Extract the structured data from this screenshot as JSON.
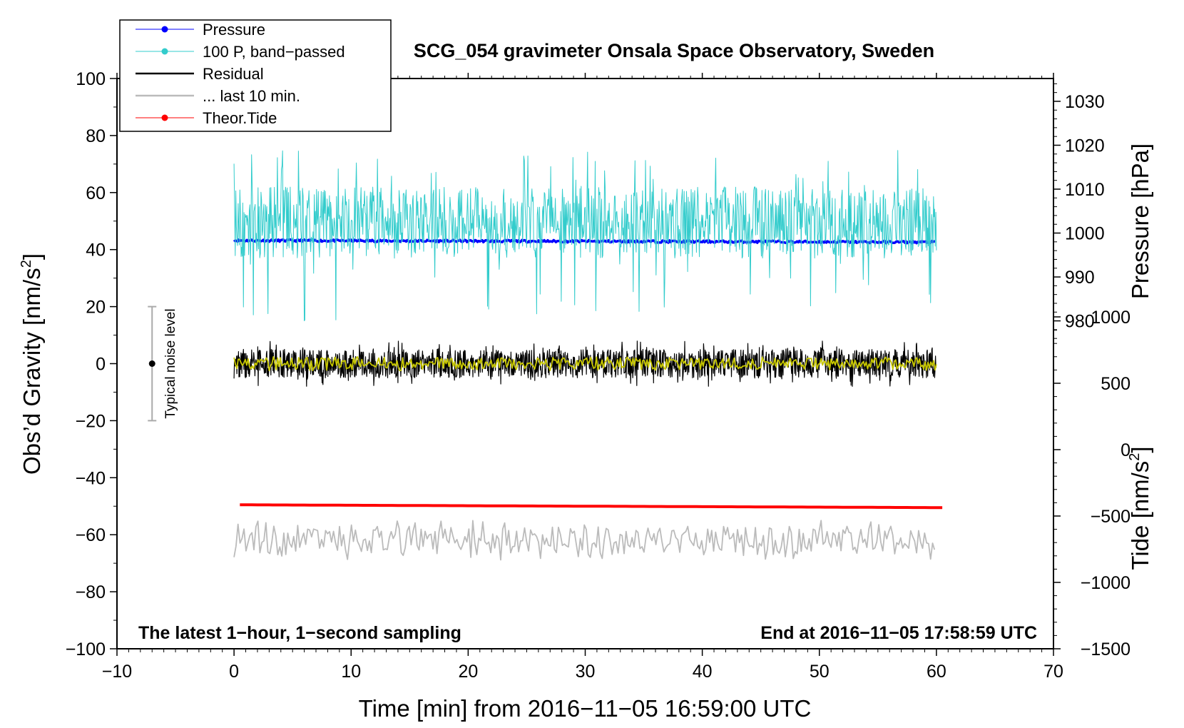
{
  "chart_data": {
    "type": "line",
    "title": "SCG_054 gravimeter Onsala Space Observatory, Sweden",
    "xlabel": "Time [min] from 2016−11−05 16:59:00 UTC",
    "ylabel_left": "Obs’d Gravity [nm/s",
    "ylabel_left_sup": "2",
    "ylabel_left_close": "]",
    "ylabel_right_top": "Pressure [hPa]",
    "ylabel_right_bottom": "Tide [nm/s",
    "ylabel_right_bottom_sup": "2",
    "ylabel_right_bottom_close": "]",
    "xlim": [
      -10,
      70
    ],
    "ylim": [
      -100,
      100
    ],
    "x_ticks": [
      -10,
      0,
      10,
      20,
      30,
      40,
      50,
      60,
      70
    ],
    "x_tick_labels": [
      "−10",
      "0",
      "10",
      "20",
      "30",
      "40",
      "50",
      "60",
      "70"
    ],
    "y_ticks": [
      -100,
      -80,
      -60,
      -40,
      -20,
      0,
      20,
      40,
      60,
      80,
      100
    ],
    "y_tick_labels": [
      "−100",
      "−80",
      "−60",
      "−40",
      "−20",
      "0",
      "20",
      "40",
      "60",
      "80",
      "100"
    ],
    "pressure_axis": {
      "ticks": [
        980,
        990,
        1000,
        1010,
        1020,
        1030
      ],
      "tick_labels": [
        "980",
        "990",
        "1000",
        "1010",
        "1020",
        "1030"
      ],
      "map_value_to_left": [
        [
          980,
          15
        ],
        [
          1030,
          92
        ]
      ]
    },
    "tide_axis": {
      "ticks": [
        -1500,
        -1000,
        -500,
        0,
        500,
        1000
      ],
      "tick_labels": [
        "−1500",
        "−1000",
        "−500",
        "0",
        "500",
        "1000"
      ],
      "map_value_to_left": [
        [
          -1500,
          -100
        ],
        [
          1000,
          16.4
        ]
      ]
    },
    "legend": {
      "position": "top-left",
      "entries": [
        {
          "label": "Pressure",
          "color": "#0000ff",
          "marker": true
        },
        {
          "label": "100 P, band−passed",
          "color": "#33cccc",
          "marker": true
        },
        {
          "label": "Residual",
          "color": "#000000",
          "marker": false
        },
        {
          "label": "... last 10 min.",
          "color": "#bbbbbb",
          "marker": false
        },
        {
          "label": "Theor.Tide",
          "color": "#ff0000",
          "marker": true
        }
      ]
    },
    "series": [
      {
        "name": "Pressure",
        "color": "#0000ff",
        "kind": "trend",
        "x_range": [
          0,
          60
        ],
        "values_start": 43.2,
        "values_end": 42.6,
        "noise_amplitude": 0.4
      },
      {
        "name": "100 P, band−passed",
        "color": "#33cccc",
        "kind": "noise",
        "x_range": [
          0,
          60
        ],
        "center": 50,
        "typical_low": 37,
        "typical_high": 62,
        "spike_min": 15,
        "spike_max": 75
      },
      {
        "name": "Residual",
        "color": "#000000",
        "kind": "noise",
        "x_range": [
          0,
          60
        ],
        "center": 0,
        "typical_low": -5,
        "typical_high": 5,
        "spike_min": -8,
        "spike_max": 8
      },
      {
        "name": "Residual (smoothed)",
        "color": "#c8c800",
        "kind": "noise",
        "x_range": [
          0,
          60
        ],
        "center": 0,
        "typical_low": -2,
        "typical_high": 2,
        "spike_min": -2.5,
        "spike_max": 2.5
      },
      {
        "name": "... last 10 min.",
        "color": "#bbbbbb",
        "kind": "noise",
        "x_range": [
          0,
          60
        ],
        "center": -62,
        "typical_low": -67,
        "typical_high": -57,
        "spike_min": -69,
        "spike_max": -55
      },
      {
        "name": "Theor.Tide",
        "color": "#ff0000",
        "kind": "trend",
        "x_range": [
          0.5,
          60.5
        ],
        "values_start": -49.5,
        "values_end": -50.5,
        "noise_amplitude": 0
      }
    ],
    "noise_indicator": {
      "label": "Typical noise level",
      "x": -7,
      "center": 0,
      "low": -20,
      "high": 20
    },
    "annotations": {
      "bottom_left": "The latest 1−hour, 1−second sampling",
      "bottom_right": "End at 2016−11−05 17:58:59 UTC"
    }
  }
}
